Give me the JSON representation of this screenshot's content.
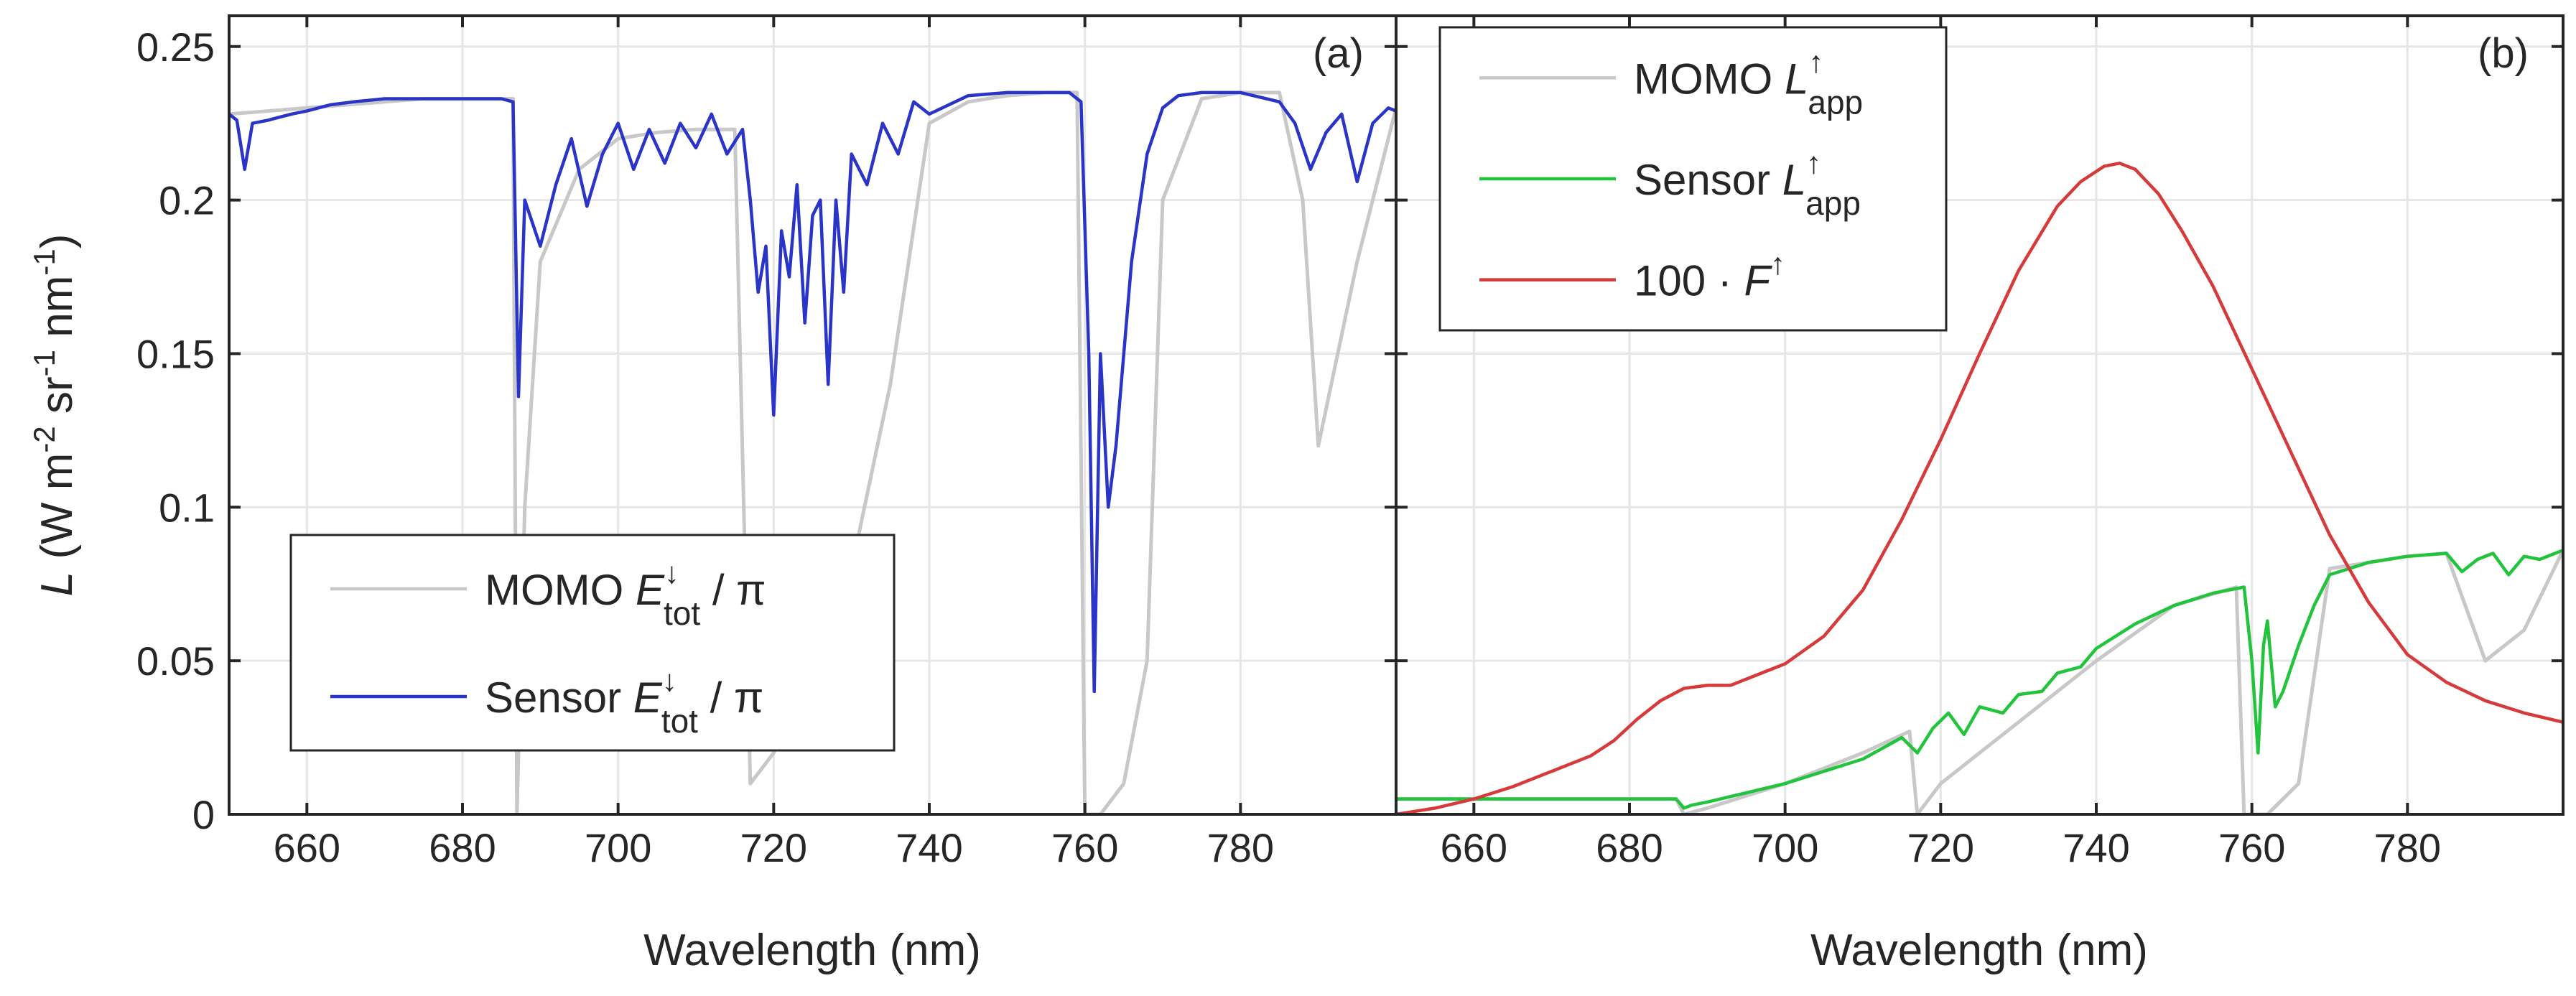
{
  "chart_data": [
    {
      "type": "line",
      "panel_label": "(a)",
      "xlabel": "Wavelength (nm)",
      "ylabel_parts": {
        "pre": "L",
        "mid": " (W m",
        "e1": "-2",
        "mid2": " sr",
        "e2": "-1",
        "mid3": " nm",
        "e3": "-1",
        "post": ")"
      },
      "xlim": [
        650,
        800
      ],
      "ylim": [
        0,
        0.26
      ],
      "xticks": [
        660,
        680,
        700,
        720,
        740,
        760,
        780
      ],
      "xtick_labels": [
        "660",
        "680",
        "700",
        "720",
        "740",
        "760",
        "780"
      ],
      "yticks": [
        0,
        0.05,
        0.1,
        0.15,
        0.2,
        0.25
      ],
      "ytick_labels": [
        "0",
        "0.05",
        "0.1",
        "0.15",
        "0.2",
        "0.25"
      ],
      "grid": true,
      "legend_position": "bottom-left",
      "legend": [
        {
          "base": "MOMO ",
          "sym": "E",
          "sup": "↓",
          "sub": "tot",
          "tail": " / π",
          "color": "#c8c8c8"
        },
        {
          "base": "Sensor ",
          "sym": "E",
          "sup": "↓",
          "sub": "tot",
          "tail": " / π",
          "color": "#2a35c8"
        }
      ],
      "series": [
        {
          "name": "MOMO E_tot / pi",
          "color": "#c8c8c8",
          "style": "high-resolution",
          "x": [
            650,
            655,
            660,
            665,
            670,
            675,
            680,
            685,
            686.5,
            687,
            688,
            690,
            695,
            700,
            705,
            710,
            715,
            717,
            720,
            725,
            730,
            735,
            740,
            745,
            750,
            755,
            759,
            760,
            762,
            765,
            768,
            770,
            775,
            780,
            785,
            788,
            790,
            795,
            800
          ],
          "y": [
            0.228,
            0.229,
            0.23,
            0.231,
            0.232,
            0.233,
            0.233,
            0.233,
            0.233,
            0.0,
            0.1,
            0.18,
            0.21,
            0.22,
            0.222,
            0.223,
            0.223,
            0.01,
            0.02,
            0.05,
            0.08,
            0.14,
            0.225,
            0.232,
            0.234,
            0.235,
            0.235,
            0.0,
            0.0,
            0.01,
            0.05,
            0.2,
            0.233,
            0.235,
            0.235,
            0.2,
            0.12,
            0.18,
            0.23
          ],
          "notes": "dense absorption lines"
        },
        {
          "name": "Sensor E_tot / pi",
          "color": "#2a35c8",
          "x": [
            650,
            651,
            652,
            653,
            655,
            658,
            660,
            663,
            666,
            670,
            675,
            680,
            685,
            686.5,
            687.2,
            688,
            690,
            692,
            694,
            696,
            698,
            700,
            702,
            704,
            706,
            708,
            710,
            712,
            714,
            716,
            717,
            718,
            719,
            720,
            721,
            722,
            723,
            724,
            725,
            726,
            727,
            728,
            729,
            730,
            732,
            734,
            736,
            738,
            740,
            745,
            750,
            755,
            758,
            759.5,
            760.5,
            761.2,
            762,
            763,
            764,
            766,
            768,
            770,
            772,
            775,
            780,
            785,
            787,
            789,
            791,
            793,
            795,
            797,
            799,
            800
          ],
          "y": [
            0.228,
            0.226,
            0.21,
            0.225,
            0.226,
            0.228,
            0.229,
            0.231,
            0.232,
            0.233,
            0.233,
            0.233,
            0.233,
            0.232,
            0.136,
            0.2,
            0.185,
            0.205,
            0.22,
            0.198,
            0.215,
            0.225,
            0.21,
            0.223,
            0.212,
            0.225,
            0.217,
            0.228,
            0.215,
            0.223,
            0.2,
            0.17,
            0.185,
            0.13,
            0.19,
            0.175,
            0.205,
            0.16,
            0.195,
            0.2,
            0.14,
            0.2,
            0.17,
            0.215,
            0.205,
            0.225,
            0.215,
            0.232,
            0.228,
            0.234,
            0.235,
            0.235,
            0.235,
            0.232,
            0.15,
            0.04,
            0.15,
            0.1,
            0.12,
            0.18,
            0.215,
            0.23,
            0.234,
            0.235,
            0.235,
            0.232,
            0.225,
            0.21,
            0.222,
            0.228,
            0.206,
            0.225,
            0.23,
            0.229
          ]
        }
      ]
    },
    {
      "type": "line",
      "panel_label": "(b)",
      "xlabel": "Wavelength (nm)",
      "xlim": [
        650,
        800
      ],
      "ylim": [
        0,
        0.26
      ],
      "xticks": [
        660,
        680,
        700,
        720,
        740,
        760,
        780
      ],
      "xtick_labels": [
        "660",
        "680",
        "700",
        "720",
        "740",
        "760",
        "780"
      ],
      "yticks": [
        0,
        0.05,
        0.1,
        0.15,
        0.2,
        0.25
      ],
      "grid": true,
      "legend_position": "top-left",
      "legend": [
        {
          "base": "MOMO ",
          "sym": "L",
          "sup": "↑",
          "sub": "app",
          "tail": "",
          "color": "#c8c8c8"
        },
        {
          "base": "Sensor ",
          "sym": "L",
          "sup": "↑",
          "sub": "app",
          "tail": "",
          "color": "#22c43c"
        },
        {
          "base": "100 · ",
          "sym": "F",
          "sup": "↑",
          "sub": "",
          "tail": "",
          "color": "#d63a3a"
        }
      ],
      "series": [
        {
          "name": "MOMO L_app",
          "color": "#c8c8c8",
          "style": "high-resolution",
          "x": [
            650,
            686,
            687,
            690,
            700,
            710,
            716,
            717,
            720,
            730,
            740,
            750,
            758,
            759,
            762,
            766,
            770,
            780,
            785,
            790,
            795,
            800
          ],
          "y": [
            0.005,
            0.005,
            0.0,
            0.002,
            0.01,
            0.02,
            0.027,
            0.0,
            0.01,
            0.03,
            0.05,
            0.068,
            0.074,
            0.0,
            0.0,
            0.01,
            0.08,
            0.084,
            0.085,
            0.05,
            0.06,
            0.086
          ],
          "notes": "dense absorption lines"
        },
        {
          "name": "Sensor L_app",
          "color": "#22c43c",
          "x": [
            650,
            660,
            670,
            680,
            686,
            687,
            688,
            690,
            695,
            700,
            705,
            710,
            715,
            717,
            719,
            721,
            723,
            725,
            728,
            730,
            733,
            735,
            738,
            740,
            745,
            750,
            755,
            759,
            760,
            760.8,
            761.5,
            762,
            763,
            764,
            766,
            768,
            770,
            775,
            780,
            785,
            787,
            789,
            791,
            793,
            795,
            797,
            800
          ],
          "y": [
            0.005,
            0.005,
            0.005,
            0.005,
            0.005,
            0.002,
            0.003,
            0.004,
            0.007,
            0.01,
            0.014,
            0.018,
            0.025,
            0.02,
            0.028,
            0.033,
            0.026,
            0.035,
            0.033,
            0.039,
            0.04,
            0.046,
            0.048,
            0.054,
            0.062,
            0.068,
            0.072,
            0.074,
            0.05,
            0.02,
            0.055,
            0.063,
            0.035,
            0.04,
            0.055,
            0.068,
            0.078,
            0.082,
            0.084,
            0.085,
            0.079,
            0.083,
            0.085,
            0.078,
            0.084,
            0.083,
            0.086
          ]
        },
        {
          "name": "100 · F",
          "color": "#d63a3a",
          "x": [
            650,
            655,
            660,
            665,
            670,
            675,
            678,
            681,
            684,
            687,
            690,
            693,
            696,
            700,
            705,
            710,
            715,
            720,
            725,
            730,
            735,
            738,
            741,
            743,
            745,
            748,
            751,
            755,
            760,
            765,
            770,
            775,
            780,
            785,
            790,
            795,
            800
          ],
          "y": [
            0.0,
            0.002,
            0.005,
            0.009,
            0.014,
            0.019,
            0.024,
            0.031,
            0.037,
            0.041,
            0.042,
            0.042,
            0.045,
            0.049,
            0.058,
            0.073,
            0.096,
            0.122,
            0.15,
            0.177,
            0.198,
            0.206,
            0.211,
            0.212,
            0.21,
            0.202,
            0.19,
            0.172,
            0.145,
            0.118,
            0.091,
            0.069,
            0.052,
            0.043,
            0.037,
            0.033,
            0.03
          ]
        }
      ]
    }
  ]
}
